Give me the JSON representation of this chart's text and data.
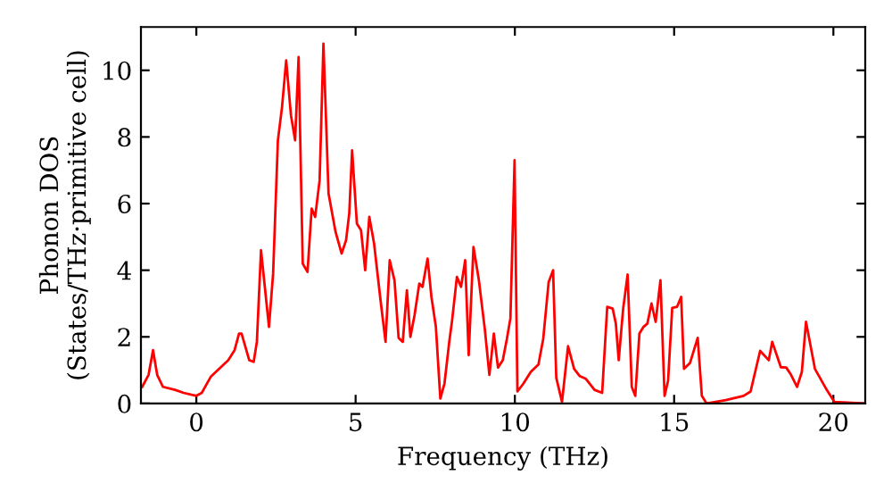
{
  "chart_data": {
    "type": "line",
    "xlabel": "Frequency (THz)",
    "ylabel": "Phonon DOS\n(States/THz·primitive cell)",
    "xlim": [
      -1.74,
      21.0
    ],
    "ylim": [
      0,
      11.3
    ],
    "xticks": [
      0,
      5,
      10,
      15,
      20
    ],
    "yticks": [
      0,
      2,
      4,
      6,
      8,
      10
    ],
    "grid": false,
    "legend": false,
    "marker": "none",
    "line_style": "solid",
    "series": [
      {
        "color": "#ff0000",
        "x": [
          -1.7,
          -1.5,
          -1.36,
          -1.23,
          -1.05,
          -0.67,
          -0.4,
          0,
          0.17,
          0.45,
          1.0,
          1.2,
          1.34,
          1.42,
          1.66,
          1.8,
          1.9,
          2.03,
          2.28,
          2.41,
          2.56,
          2.69,
          2.82,
          2.97,
          3.1,
          3.21,
          3.34,
          3.49,
          3.62,
          3.73,
          3.87,
          3.99,
          4.15,
          4.37,
          4.56,
          4.7,
          4.8,
          4.89,
          5.04,
          5.17,
          5.3,
          5.43,
          5.58,
          5.77,
          5.94,
          6.07,
          6.22,
          6.35,
          6.48,
          6.61,
          6.72,
          6.85,
          7.0,
          7.1,
          7.26,
          7.38,
          7.52,
          7.66,
          7.79,
          7.94,
          8.03,
          8.18,
          8.31,
          8.44,
          8.55,
          8.7,
          8.87,
          9.06,
          9.2,
          9.34,
          9.47,
          9.62,
          9.75,
          9.86,
          9.99,
          10.08,
          10.27,
          10.5,
          10.74,
          10.89,
          11.06,
          11.2,
          11.3,
          11.48,
          11.67,
          11.86,
          12.04,
          12.23,
          12.5,
          12.74,
          12.9,
          13.07,
          13.17,
          13.26,
          13.4,
          13.54,
          13.67,
          13.78,
          13.91,
          14.04,
          14.16,
          14.29,
          14.42,
          14.57,
          14.7,
          14.81,
          14.94,
          15.09,
          15.22,
          15.31,
          15.5,
          15.74,
          15.87,
          16.02,
          16.62,
          17.18,
          17.4,
          17.7,
          17.97,
          18.08,
          18.35,
          18.52,
          18.67,
          18.86,
          19.01,
          19.14,
          19.42,
          19.79,
          20.03,
          21.0
        ],
        "values": [
          0.5,
          0.86,
          1.6,
          0.86,
          0.5,
          0.41,
          0.32,
          0.23,
          0.32,
          0.8,
          1.3,
          1.6,
          2.1,
          2.1,
          1.3,
          1.25,
          1.85,
          4.6,
          2.3,
          3.9,
          7.9,
          8.9,
          10.3,
          8.65,
          7.9,
          10.4,
          4.2,
          3.95,
          5.85,
          5.6,
          6.7,
          10.8,
          6.3,
          5.15,
          4.5,
          4.9,
          5.7,
          7.6,
          5.4,
          5.2,
          4.0,
          5.6,
          4.8,
          3.2,
          1.85,
          4.3,
          3.7,
          1.97,
          1.85,
          3.4,
          2.0,
          2.65,
          3.6,
          3.5,
          4.35,
          3.2,
          2.3,
          0.15,
          0.6,
          1.85,
          2.5,
          3.8,
          3.5,
          4.3,
          1.45,
          4.7,
          3.7,
          2.2,
          0.86,
          2.1,
          1.08,
          1.3,
          1.94,
          2.56,
          7.3,
          0.36,
          0.6,
          0.95,
          1.17,
          1.94,
          3.64,
          4.0,
          0.77,
          0.05,
          1.72,
          1.04,
          0.82,
          0.74,
          0.41,
          0.32,
          2.9,
          2.85,
          2.4,
          1.3,
          2.85,
          3.87,
          0.5,
          0.23,
          2.1,
          2.3,
          2.4,
          3.0,
          2.45,
          3.7,
          0.23,
          0.68,
          2.87,
          2.9,
          3.2,
          1.04,
          1.22,
          1.97,
          0.23,
          0,
          0.1,
          0.23,
          0.36,
          1.58,
          1.3,
          1.85,
          1.09,
          1.08,
          0.86,
          0.5,
          0.95,
          2.45,
          1.04,
          0.41,
          0.05,
          0
        ]
      }
    ]
  }
}
